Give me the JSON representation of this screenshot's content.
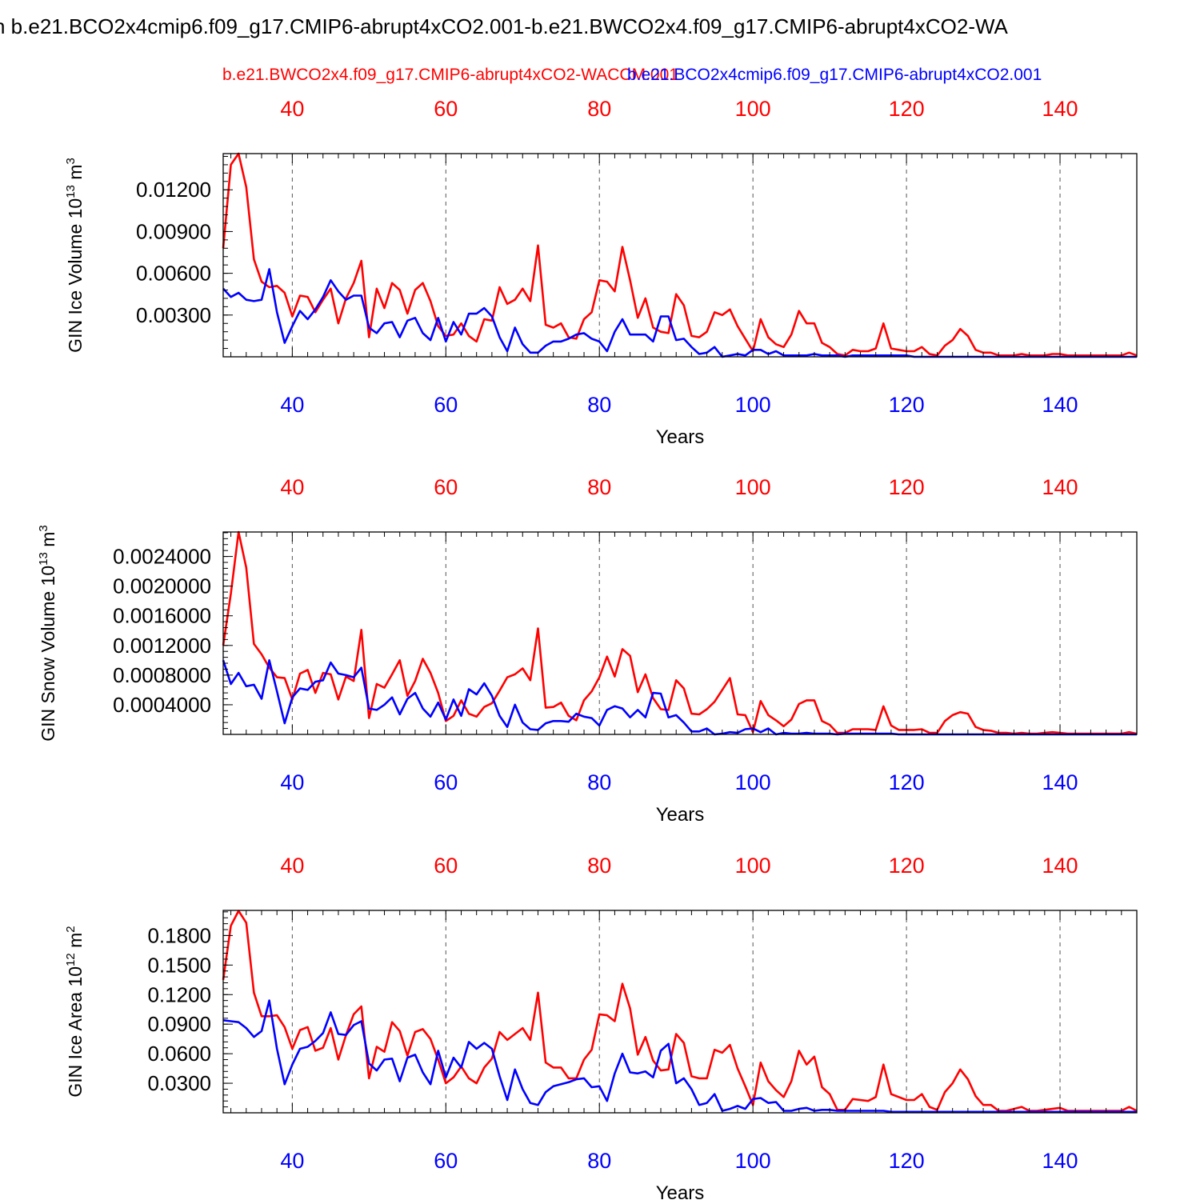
{
  "title": "n b.e21.BCO2x4cmip6.f09_g17.CMIP6-abrupt4xCO2.001-b.e21.BWCO2x4.f09_g17.CMIP6-abrupt4xCO2-WA",
  "legend": {
    "red_label": "b.e21.BWCO2x4.f09_g17.CMIP6-abrupt4xCO2-WACCM.001",
    "blue_label": "b.e21.BCO2x4cmip6.f09_g17.CMIP6-abrupt4xCO2.001"
  },
  "colors": {
    "red": "#ff0000",
    "blue": "#0000ff",
    "axis": "#000000",
    "grid": "#555555"
  },
  "chart_data": [
    {
      "type": "line",
      "ylabel": "GIN Ice Volume 10",
      "ylabel_exp": "13",
      "ylabel_unit": " m",
      "ylabel_unit_exp": "3",
      "xlabel": "Years",
      "xlim": [
        31,
        150
      ],
      "ylim": [
        0,
        0.0146
      ],
      "xticks": [
        "40",
        "60",
        "80",
        "100",
        "120",
        "140"
      ],
      "yticks": [
        "0.00300",
        "0.00600",
        "0.00900",
        "0.01200"
      ],
      "grid_x": true,
      "x_start": 31,
      "series": [
        {
          "name": "b.e21.BWCO2x4.f09_g17.CMIP6-abrupt4xCO2-WACCM.001",
          "color": "red",
          "values": [
            0.0078,
            0.0138,
            0.0146,
            0.0122,
            0.007,
            0.0054,
            0.005,
            0.0051,
            0.0046,
            0.0029,
            0.0044,
            0.0043,
            0.0032,
            0.0041,
            0.0049,
            0.0024,
            0.0042,
            0.0053,
            0.0069,
            0.0014,
            0.0049,
            0.0035,
            0.0053,
            0.0048,
            0.0031,
            0.0048,
            0.0053,
            0.004,
            0.0022,
            0.0015,
            0.0016,
            0.0024,
            0.0015,
            0.0011,
            0.0027,
            0.0026,
            0.005,
            0.0038,
            0.0041,
            0.0049,
            0.004,
            0.008,
            0.0023,
            0.0021,
            0.0024,
            0.0014,
            0.0013,
            0.0027,
            0.0032,
            0.0055,
            0.0054,
            0.0047,
            0.0079,
            0.0055,
            0.0028,
            0.0042,
            0.0021,
            0.0018,
            0.0017,
            0.0045,
            0.0037,
            0.0015,
            0.0014,
            0.0018,
            0.0032,
            0.003,
            0.0034,
            0.0022,
            0.0013,
            0.0004,
            0.0027,
            0.0014,
            0.0009,
            0.0007,
            0.0016,
            0.0033,
            0.0024,
            0.0024,
            0.001,
            0.0007,
            0.0002,
            0.0001,
            0.0005,
            0.0004,
            0.0004,
            0.0006,
            0.0024,
            0.0006,
            0.0005,
            0.0004,
            0.0004,
            0.0007,
            0.0002,
            0.0001,
            0.0008,
            0.0012,
            0.002,
            0.0015,
            0.0005,
            0.0003,
            0.0003,
            0.0001,
            0.0001,
            0.0001,
            0.0002,
            0.0001,
            0.0001,
            0.0001,
            0.0002,
            0.0002,
            0.0001,
            0.0001,
            0.0001,
            0.0001,
            0.0001,
            0.0001,
            0.0001,
            0.0001,
            0.0003,
            0.0001
          ]
        },
        {
          "name": "b.e21.BCO2x4cmip6.f09_g17.CMIP6-abrupt4xCO2.001",
          "color": "blue",
          "values": [
            0.0049,
            0.0043,
            0.0046,
            0.0041,
            0.004,
            0.0041,
            0.0063,
            0.0032,
            0.001,
            0.0022,
            0.0033,
            0.0027,
            0.0034,
            0.0043,
            0.0055,
            0.0047,
            0.0041,
            0.0044,
            0.0044,
            0.0021,
            0.0017,
            0.0024,
            0.0025,
            0.0014,
            0.0026,
            0.0028,
            0.0017,
            0.0012,
            0.0028,
            0.0011,
            0.0025,
            0.0016,
            0.0031,
            0.0031,
            0.0035,
            0.0029,
            0.0014,
            0.0004,
            0.0021,
            0.0009,
            0.0003,
            0.0003,
            0.0008,
            0.0011,
            0.0011,
            0.0013,
            0.0016,
            0.0017,
            0.0013,
            0.0011,
            0.0004,
            0.0018,
            0.0027,
            0.0016,
            0.0016,
            0.0016,
            0.0011,
            0.0029,
            0.0029,
            0.0012,
            0.0013,
            0.0007,
            0.0002,
            0.0003,
            0.0007,
            0.0,
            0.0001,
            0.0002,
            0.0001,
            0.0005,
            0.0005,
            0.0002,
            0.0004,
            0.0001,
            0.0001,
            0.0001,
            0.0001,
            0.0002,
            0.0001,
            0.0001,
            0.0001,
            0.0,
            0.0001,
            0.0001,
            0.0001,
            0.0001,
            0.0001,
            0.0001,
            0.0001,
            0.0001,
            0.0,
            0.0,
            0.0,
            0.0,
            0.0,
            0.0,
            0.0,
            0.0,
            0.0,
            0.0,
            0.0,
            0.0,
            0.0,
            0.0,
            0.0,
            0.0,
            0.0,
            0.0,
            0.0,
            0.0,
            0.0,
            0.0,
            0.0,
            0.0,
            0.0,
            0.0,
            0.0,
            0.0,
            0.0,
            0.0
          ]
        }
      ]
    },
    {
      "type": "line",
      "ylabel": "GIN Snow Volume 10",
      "ylabel_exp": "13",
      "ylabel_unit": " m",
      "ylabel_unit_exp": "3",
      "xlabel": "Years",
      "xlim": [
        31,
        150
      ],
      "ylim": [
        0,
        0.00273
      ],
      "xticks": [
        "40",
        "60",
        "80",
        "100",
        "120",
        "140"
      ],
      "yticks": [
        "0.0004000",
        "0.0008000",
        "0.0012000",
        "0.0016000",
        "0.0020000",
        "0.0024000"
      ],
      "grid_x": true,
      "x_start": 31,
      "series": [
        {
          "name": "b.e21.BWCO2x4.f09_g17.CMIP6-abrupt4xCO2-WACCM.001",
          "color": "red",
          "values": [
            0.0012,
            0.0019,
            0.00273,
            0.00225,
            0.00122,
            0.00108,
            0.0009,
            0.00077,
            0.00076,
            0.00047,
            0.00082,
            0.00087,
            0.00056,
            0.00083,
            0.00081,
            0.00047,
            0.00078,
            0.00072,
            0.00141,
            0.00022,
            0.00068,
            0.00063,
            0.00081,
            0.001,
            0.00052,
            0.00072,
            0.00102,
            0.00083,
            0.00056,
            0.00018,
            0.00025,
            0.00046,
            0.00028,
            0.00024,
            0.00037,
            0.00042,
            0.00059,
            0.00077,
            0.00081,
            0.00089,
            0.00073,
            0.00143,
            0.00036,
            0.00037,
            0.00043,
            0.00025,
            0.00019,
            0.00046,
            0.00058,
            0.00077,
            0.00105,
            0.00078,
            0.00115,
            0.00106,
            0.00057,
            0.00081,
            0.00049,
            0.00034,
            0.00033,
            0.00073,
            0.00062,
            0.00028,
            0.00027,
            0.00034,
            0.00044,
            0.0006,
            0.00076,
            0.00027,
            0.00026,
            3e-05,
            0.00045,
            0.00026,
            0.00019,
            0.00011,
            0.0002,
            0.00041,
            0.00046,
            0.00046,
            0.00018,
            0.00013,
            2e-05,
            2e-05,
            7e-05,
            7e-05,
            7e-05,
            6e-05,
            0.00038,
            0.00012,
            6e-05,
            6e-05,
            6e-05,
            7e-05,
            2e-05,
            2e-05,
            0.00018,
            0.00026,
            0.0003,
            0.00028,
            0.0001,
            6e-05,
            5e-05,
            2e-05,
            2e-05,
            1e-05,
            2e-05,
            1e-05,
            1e-05,
            2e-05,
            3e-05,
            2e-05,
            1e-05,
            1e-05,
            1e-05,
            1e-05,
            1e-05,
            1e-05,
            1e-05,
            1e-05,
            3e-05,
            1e-05
          ]
        },
        {
          "name": "b.e21.BCO2x4cmip6.f09_g17.CMIP6-abrupt4xCO2.001",
          "color": "blue",
          "values": [
            0.001,
            0.00068,
            0.00083,
            0.00065,
            0.00067,
            0.00048,
            0.001,
            0.00058,
            0.00015,
            0.0005,
            0.00062,
            0.0006,
            0.00071,
            0.00073,
            0.00097,
            0.00082,
            0.0008,
            0.00077,
            0.0009,
            0.00035,
            0.00033,
            0.0004,
            0.0005,
            0.00027,
            0.00048,
            0.00056,
            0.00035,
            0.00024,
            0.00043,
            0.0002,
            0.00047,
            0.00025,
            0.00061,
            0.00054,
            0.00069,
            0.00052,
            0.00025,
            0.0001,
            0.0004,
            0.00016,
            7e-05,
            6e-05,
            0.00015,
            0.00018,
            0.00018,
            0.00017,
            0.00028,
            0.00024,
            0.00022,
            0.00012,
            0.00033,
            0.00038,
            0.00035,
            0.00023,
            0.00033,
            0.00023,
            0.00056,
            0.00055,
            0.00023,
            0.00026,
            0.00016,
            4e-05,
            4e-05,
            8e-05,
            0.0,
            1e-05,
            3e-05,
            2e-05,
            7e-05,
            8e-05,
            3e-05,
            8e-05,
            0.0,
            2e-05,
            1e-05,
            1e-05,
            2e-05,
            1e-05,
            1e-05,
            1e-05,
            0.0,
            1e-05,
            1e-05,
            1e-05,
            1e-05,
            1e-05,
            1e-05,
            1e-05,
            0.0,
            0.0,
            0.0,
            0.0,
            0.0,
            0.0,
            0.0,
            0.0,
            0.0,
            0.0,
            0.0,
            0.0,
            0.0,
            0.0,
            0.0,
            0.0,
            0.0,
            0.0,
            0.0,
            0.0,
            0.0,
            0.0,
            0.0,
            0.0,
            0.0,
            0.0,
            0.0,
            0.0,
            0.0,
            0.0,
            0.0,
            0.0
          ]
        }
      ]
    },
    {
      "type": "line",
      "ylabel": "GIN Ice Area 10",
      "ylabel_exp": "12",
      "ylabel_unit": " m",
      "ylabel_unit_exp": "2",
      "xlabel": "Years",
      "xlim": [
        31,
        150
      ],
      "ylim": [
        0,
        0.2055
      ],
      "xticks": [
        "40",
        "60",
        "80",
        "100",
        "120",
        "140"
      ],
      "yticks": [
        "0.0300",
        "0.0600",
        "0.0900",
        "0.1200",
        "0.1500",
        "0.1800"
      ],
      "grid_x": true,
      "x_start": 31,
      "series": [
        {
          "name": "b.e21.BWCO2x4.f09_g17.CMIP6-abrupt4xCO2-WACCM.001",
          "color": "red",
          "values": [
            0.135,
            0.19,
            0.205,
            0.193,
            0.122,
            0.098,
            0.098,
            0.099,
            0.087,
            0.065,
            0.084,
            0.087,
            0.063,
            0.066,
            0.086,
            0.054,
            0.079,
            0.1,
            0.108,
            0.035,
            0.067,
            0.062,
            0.092,
            0.083,
            0.058,
            0.082,
            0.085,
            0.075,
            0.054,
            0.03,
            0.036,
            0.047,
            0.035,
            0.03,
            0.046,
            0.055,
            0.082,
            0.074,
            0.08,
            0.086,
            0.074,
            0.122,
            0.051,
            0.046,
            0.046,
            0.035,
            0.035,
            0.054,
            0.064,
            0.1,
            0.099,
            0.093,
            0.131,
            0.106,
            0.059,
            0.077,
            0.053,
            0.043,
            0.044,
            0.08,
            0.071,
            0.037,
            0.035,
            0.035,
            0.064,
            0.061,
            0.069,
            0.045,
            0.027,
            0.008,
            0.051,
            0.032,
            0.023,
            0.016,
            0.032,
            0.063,
            0.049,
            0.057,
            0.026,
            0.019,
            0.003,
            0.003,
            0.014,
            0.013,
            0.012,
            0.016,
            0.049,
            0.019,
            0.016,
            0.013,
            0.013,
            0.019,
            0.006,
            0.003,
            0.021,
            0.03,
            0.044,
            0.034,
            0.017,
            0.008,
            0.008,
            0.002,
            0.002,
            0.004,
            0.006,
            0.002,
            0.002,
            0.003,
            0.004,
            0.005,
            0.002,
            0.002,
            0.002,
            0.002,
            0.002,
            0.002,
            0.002,
            0.002,
            0.006,
            0.002
          ]
        },
        {
          "name": "b.e21.BCO2x4cmip6.f09_g17.CMIP6-abrupt4xCO2.001",
          "color": "blue",
          "values": [
            0.094,
            0.093,
            0.092,
            0.086,
            0.077,
            0.083,
            0.114,
            0.065,
            0.029,
            0.049,
            0.065,
            0.067,
            0.073,
            0.081,
            0.102,
            0.08,
            0.079,
            0.089,
            0.093,
            0.05,
            0.043,
            0.054,
            0.055,
            0.032,
            0.056,
            0.059,
            0.041,
            0.029,
            0.063,
            0.036,
            0.056,
            0.046,
            0.072,
            0.065,
            0.071,
            0.065,
            0.037,
            0.013,
            0.044,
            0.024,
            0.01,
            0.008,
            0.021,
            0.027,
            0.029,
            0.031,
            0.034,
            0.035,
            0.026,
            0.027,
            0.012,
            0.04,
            0.06,
            0.041,
            0.04,
            0.042,
            0.036,
            0.063,
            0.07,
            0.03,
            0.035,
            0.024,
            0.008,
            0.01,
            0.019,
            0.002,
            0.004,
            0.007,
            0.004,
            0.014,
            0.015,
            0.01,
            0.011,
            0.002,
            0.002,
            0.004,
            0.005,
            0.002,
            0.003,
            0.003,
            0.002,
            0.002,
            0.002,
            0.002,
            0.002,
            0.002,
            0.002,
            0.001,
            0.001,
            0.001,
            0.001,
            0.001,
            0.001,
            0.001,
            0.001,
            0.001,
            0.001,
            0.001,
            0.001,
            0.001,
            0.001,
            0.001,
            0.001,
            0.001,
            0.001,
            0.001,
            0.001,
            0.001,
            0.001,
            0.001,
            0.001,
            0.001,
            0.001,
            0.001,
            0.001,
            0.001,
            0.001,
            0.001,
            0.001,
            0.001
          ]
        }
      ]
    }
  ]
}
